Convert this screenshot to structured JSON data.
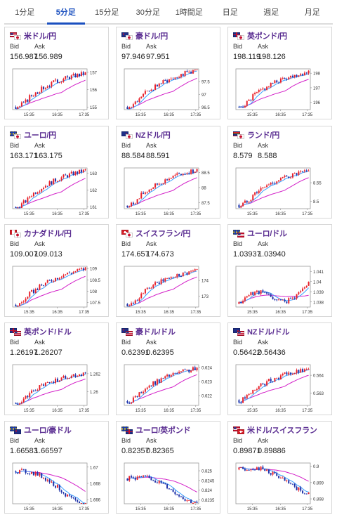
{
  "tabs": [
    {
      "label": "1分足",
      "active": false
    },
    {
      "label": "5分足",
      "active": true
    },
    {
      "label": "15分足",
      "active": false
    },
    {
      "label": "30分足",
      "active": false
    },
    {
      "label": "1時間足",
      "active": false
    },
    {
      "label": "日足",
      "active": false
    },
    {
      "label": "週足",
      "active": false
    },
    {
      "label": "月足",
      "active": false
    }
  ],
  "labels": {
    "bid": "Bid",
    "ask": "Ask"
  },
  "colors": {
    "up": "#e8202a",
    "down": "#1b2fa8",
    "ma_short": "#3aa0ff",
    "ma_long": "#d320c8",
    "title": "#5a2d91",
    "active_tab": "#1a4fbf"
  },
  "cards": [
    {
      "name": "米ドル/円",
      "flags": [
        "us",
        "jp"
      ],
      "bid": "156.987",
      "ask": "156.989",
      "chart_data": {
        "type": "candlestick",
        "x_ticks": [
          "15:35",
          "16:35",
          "17:35"
        ],
        "y_ticks": [
          "157",
          "156",
          "155"
        ],
        "ylim": [
          154.85,
          157.2
        ],
        "start": 155.0,
        "end": 156.95,
        "trend": "up"
      }
    },
    {
      "name": "豪ドル/円",
      "flags": [
        "au",
        "jp"
      ],
      "bid": "97.946",
      "ask": "97.951",
      "chart_data": {
        "type": "candlestick",
        "x_ticks": [
          "15:35",
          "16:35",
          "17:35"
        ],
        "y_ticks": [
          "97.5",
          "97",
          "96.5"
        ],
        "ylim": [
          96.4,
          98.0
        ],
        "start": 96.5,
        "end": 97.95,
        "trend": "up"
      }
    },
    {
      "name": "英ポンド/円",
      "flags": [
        "gb",
        "jp"
      ],
      "bid": "198.119",
      "ask": "198.126",
      "chart_data": {
        "type": "candlestick",
        "x_ticks": [
          "15:35",
          "16:35",
          "17:35"
        ],
        "y_ticks": [
          "198",
          "197",
          "196"
        ],
        "ylim": [
          195.5,
          198.3
        ],
        "start": 195.7,
        "end": 198.1,
        "trend": "up"
      }
    },
    {
      "name": "ユーロ/円",
      "flags": [
        "eu",
        "jp"
      ],
      "bid": "163.171",
      "ask": "163.175",
      "chart_data": {
        "type": "candlestick",
        "x_ticks": [
          "15:35",
          "16:35",
          "17:35"
        ],
        "y_ticks": [
          "163",
          "162",
          "161"
        ],
        "ylim": [
          160.9,
          163.3
        ],
        "start": 161.0,
        "end": 163.15,
        "trend": "up"
      }
    },
    {
      "name": "NZドル/円",
      "flags": [
        "nz",
        "jp"
      ],
      "bid": "88.584",
      "ask": "88.591",
      "chart_data": {
        "type": "candlestick",
        "x_ticks": [
          "15:35",
          "16:35",
          "17:35"
        ],
        "y_ticks": [
          "88.5",
          "88",
          "87.5"
        ],
        "ylim": [
          87.3,
          88.65
        ],
        "start": 87.4,
        "end": 88.58,
        "trend": "up"
      }
    },
    {
      "name": "ランド/円",
      "flags": [
        "za",
        "jp"
      ],
      "bid": "8.579",
      "ask": "8.588",
      "chart_data": {
        "type": "candlestick",
        "x_ticks": [
          "15:35",
          "16:35",
          "17:35"
        ],
        "y_ticks": [
          "8.55",
          "8.5"
        ],
        "ylim": [
          8.48,
          8.59
        ],
        "start": 8.49,
        "end": 8.58,
        "trend": "up"
      }
    },
    {
      "name": "カナダドル/円",
      "flags": [
        "ca",
        "jp"
      ],
      "bid": "109.007",
      "ask": "109.013",
      "chart_data": {
        "type": "candlestick",
        "x_ticks": [
          "15:35",
          "16:35",
          "17:35"
        ],
        "y_ticks": [
          "109",
          "108.5",
          "108",
          "107.5"
        ],
        "ylim": [
          107.3,
          109.1
        ],
        "start": 107.4,
        "end": 109.0,
        "trend": "up"
      }
    },
    {
      "name": "スイスフラン/円",
      "flags": [
        "ch",
        "jp"
      ],
      "bid": "174.657",
      "ask": "174.673",
      "chart_data": {
        "type": "candlestick",
        "x_ticks": [
          "15:35",
          "16:35",
          "17:35"
        ],
        "y_ticks": [
          "174",
          "173"
        ],
        "ylim": [
          172.3,
          174.9
        ],
        "start": 172.5,
        "end": 174.65,
        "trend": "up"
      }
    },
    {
      "name": "ユーロ/ドル",
      "flags": [
        "eu",
        "us"
      ],
      "bid": "1.03937",
      "ask": "1.03940",
      "chart_data": {
        "type": "candlestick",
        "x_ticks": [
          "15:35",
          "16:35",
          "17:35"
        ],
        "y_ticks": [
          "1.041",
          "1.04",
          "1.039",
          "1.038"
        ],
        "ylim": [
          1.0375,
          1.0415
        ],
        "start": 1.0378,
        "end": 1.0394,
        "trend": "flat"
      }
    },
    {
      "name": "英ポンド/ドル",
      "flags": [
        "gb",
        "us"
      ],
      "bid": "1.26197",
      "ask": "1.26207",
      "chart_data": {
        "type": "candlestick",
        "x_ticks": [
          "15:35",
          "16:35",
          "17:35"
        ],
        "y_ticks": [
          "1.262",
          "1.26"
        ],
        "ylim": [
          1.2585,
          1.263
        ],
        "start": 1.2588,
        "end": 1.262,
        "trend": "up"
      }
    },
    {
      "name": "豪ドル/ドル",
      "flags": [
        "au",
        "us"
      ],
      "bid": "0.62391",
      "ask": "0.62395",
      "chart_data": {
        "type": "candlestick",
        "x_ticks": [
          "15:35",
          "16:35",
          "17:35"
        ],
        "y_ticks": [
          "0.624",
          "0.623",
          "0.622"
        ],
        "ylim": [
          0.6213,
          0.6242
        ],
        "start": 0.6216,
        "end": 0.6239,
        "trend": "up"
      }
    },
    {
      "name": "NZドル/ドル",
      "flags": [
        "nz",
        "us"
      ],
      "bid": "0.56422",
      "ask": "0.56436",
      "chart_data": {
        "type": "candlestick",
        "x_ticks": [
          "15:35",
          "16:35",
          "17:35"
        ],
        "y_ticks": [
          "0.564",
          "0.563"
        ],
        "ylim": [
          0.5623,
          0.5646
        ],
        "start": 0.5626,
        "end": 0.5643,
        "trend": "up"
      }
    },
    {
      "name": "ユーロ/豪ドル",
      "flags": [
        "eu",
        "au"
      ],
      "bid": "1.66583",
      "ask": "1.66597",
      "chart_data": {
        "type": "candlestick",
        "x_ticks": [
          "15:35",
          "16:35",
          "17:35"
        ],
        "y_ticks": [
          "1.67",
          "1.668",
          "1.666"
        ],
        "ylim": [
          1.6655,
          1.6705
        ],
        "start": 1.6695,
        "end": 1.6658,
        "trend": "down"
      }
    },
    {
      "name": "ユーロ/英ポンド",
      "flags": [
        "eu",
        "gb"
      ],
      "bid": "0.82357",
      "ask": "0.82365",
      "chart_data": {
        "type": "candlestick",
        "x_ticks": [
          "15:35",
          "16:35",
          "17:35"
        ],
        "y_ticks": [
          "0.825",
          "0.8245",
          "0.824",
          "0.8235"
        ],
        "ylim": [
          0.8233,
          0.8254
        ],
        "start": 0.8246,
        "end": 0.8236,
        "trend": "down"
      }
    },
    {
      "name": "米ドル/スイスフラン",
      "flags": [
        "us",
        "ch"
      ],
      "bid": "0.89871",
      "ask": "0.89886",
      "chart_data": {
        "type": "candlestick",
        "x_ticks": [
          "15:35",
          "16:35",
          "17:35"
        ],
        "y_ticks": [
          "0.9",
          "0.899",
          "0.898"
        ],
        "ylim": [
          0.8977,
          0.9002
        ],
        "start": 0.8998,
        "end": 0.8987,
        "trend": "down"
      }
    }
  ]
}
